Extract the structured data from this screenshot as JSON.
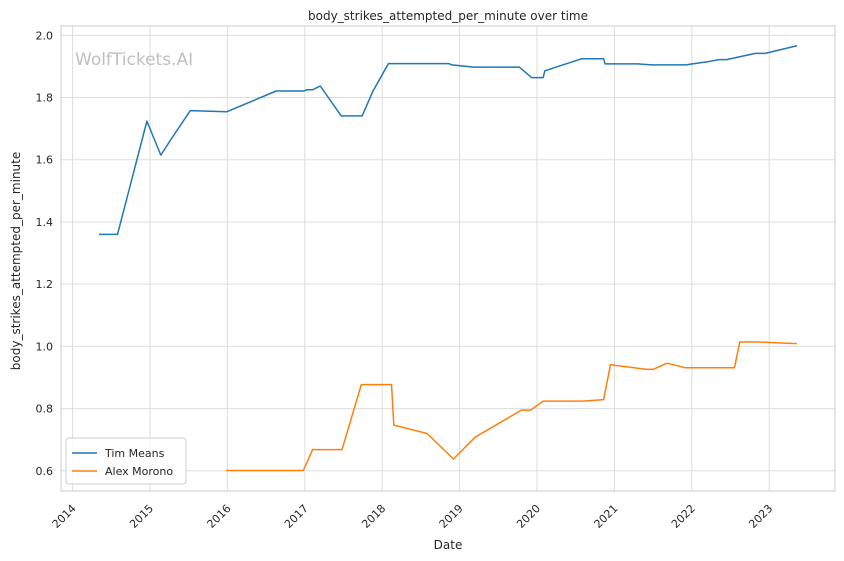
{
  "chart_data": {
    "type": "line",
    "title": "body_strikes_attempted_per_minute over time",
    "xlabel": "Date",
    "ylabel": "body_strikes_attempted_per_minute",
    "watermark": "WolfTickets.AI",
    "xlim": [
      2013.85,
      2023.85
    ],
    "ylim": [
      0.535,
      2.03
    ],
    "x_ticks": [
      2014,
      2015,
      2016,
      2017,
      2018,
      2019,
      2020,
      2021,
      2022,
      2023
    ],
    "x_tick_labels": [
      "2014",
      "2015",
      "2016",
      "2017",
      "2018",
      "2019",
      "2020",
      "2021",
      "2022",
      "2023"
    ],
    "y_ticks": [
      0.6,
      0.8,
      1.0,
      1.2,
      1.4,
      1.6,
      1.8,
      2.0
    ],
    "y_tick_labels": [
      "0.6",
      "0.8",
      "1.0",
      "1.2",
      "1.4",
      "1.6",
      "1.8",
      "2.0"
    ],
    "grid": true,
    "legend_position": "lower-left",
    "series": [
      {
        "name": "Tim Means",
        "color": "#1f77b4",
        "x": [
          2014.35,
          2014.58,
          2014.96,
          2015.14,
          2015.27,
          2015.52,
          2015.99,
          2016.63,
          2016.99,
          2017.02,
          2017.1,
          2017.2,
          2017.47,
          2017.74,
          2017.88,
          2018.08,
          2018.28,
          2018.86,
          2018.9,
          2019.18,
          2019.77,
          2019.93,
          2020.08,
          2020.1,
          2020.58,
          2020.86,
          2020.88,
          2021.3,
          2021.48,
          2021.92,
          2022.2,
          2022.35,
          2022.45,
          2022.82,
          2022.95,
          2023.35
        ],
        "y": [
          1.36,
          1.36,
          1.724,
          1.615,
          1.665,
          1.758,
          1.754,
          1.821,
          1.821,
          1.825,
          1.825,
          1.837,
          1.741,
          1.741,
          1.82,
          1.909,
          1.909,
          1.909,
          1.905,
          1.898,
          1.898,
          1.864,
          1.864,
          1.886,
          1.925,
          1.925,
          1.908,
          1.908,
          1.905,
          1.905,
          1.915,
          1.922,
          1.922,
          1.942,
          1.942,
          1.966
        ]
      },
      {
        "name": "Alex Morono",
        "color": "#ff7f0e",
        "x": [
          2015.99,
          2016.98,
          2017.1,
          2017.48,
          2017.73,
          2018.12,
          2018.15,
          2018.58,
          2018.92,
          2019.2,
          2019.8,
          2019.92,
          2020.08,
          2020.6,
          2020.86,
          2020.95,
          2021.42,
          2021.5,
          2021.68,
          2021.92,
          2022.45,
          2022.55,
          2022.62,
          2022.85,
          2023.35
        ],
        "y": [
          0.601,
          0.601,
          0.668,
          0.668,
          0.877,
          0.877,
          0.747,
          0.72,
          0.638,
          0.708,
          0.795,
          0.795,
          0.824,
          0.824,
          0.829,
          0.941,
          0.926,
          0.926,
          0.946,
          0.931,
          0.931,
          0.931,
          1.014,
          1.014,
          1.009
        ]
      }
    ]
  }
}
